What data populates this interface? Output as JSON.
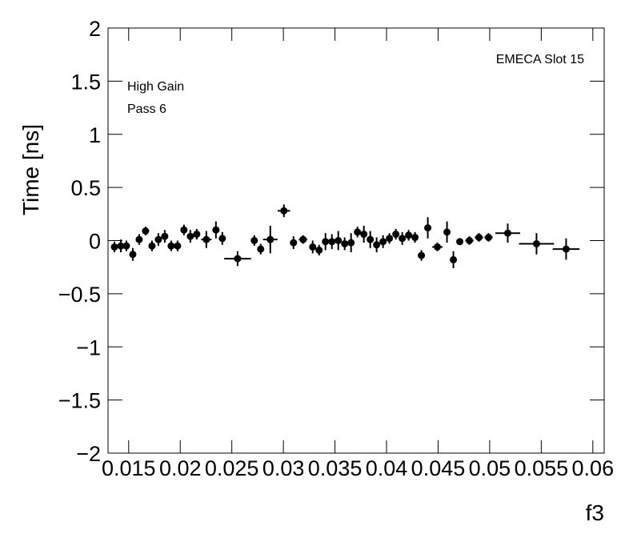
{
  "chart_data": {
    "type": "errorbar",
    "annotations": [
      "EMECA Slot 15",
      "High Gain",
      "Pass 6"
    ],
    "xlabel": "f3",
    "ylabel": "Time [ns]",
    "color": "#000000",
    "xlim": [
      0.013,
      0.0611
    ],
    "ylim": [
      -2,
      2
    ],
    "xticks": [
      0.015,
      0.02,
      0.025,
      0.03,
      0.035,
      0.04,
      0.045,
      0.05,
      0.055,
      0.06
    ],
    "yticks": [
      {
        "value": -2,
        "label": "−2"
      },
      {
        "value": -1.5,
        "label": "−1.5"
      },
      {
        "value": -1,
        "label": "−1"
      },
      {
        "value": -0.5,
        "label": "−0.5"
      },
      0,
      0.5,
      1,
      1.5,
      2
    ],
    "x": [
      0.01362,
      0.01424,
      0.01478,
      0.0154,
      0.01602,
      0.01664,
      0.01726,
      0.01788,
      0.0185,
      0.01912,
      0.01974,
      0.02036,
      0.02098,
      0.0216,
      0.02253,
      0.02346,
      0.02408,
      0.02556,
      0.02718,
      0.0278,
      0.02873,
      0.03005,
      0.03098,
      0.03191,
      0.03284,
      0.03346,
      0.03408,
      0.0347,
      0.03532,
      0.03594,
      0.03656,
      0.03718,
      0.0378,
      0.03842,
      0.03904,
      0.03966,
      0.04028,
      0.0409,
      0.04152,
      0.04214,
      0.04276,
      0.04338,
      0.044,
      0.04493,
      0.04586,
      0.04648,
      0.0471,
      0.04803,
      0.04896,
      0.04989,
      0.05175,
      0.05454,
      0.05741
    ],
    "xerr": [
      0.0003,
      0.0003,
      0.0003,
      0.0003,
      0.0003,
      0.0003,
      0.0003,
      0.0003,
      0.0003,
      0.0003,
      0.0003,
      0.0003,
      0.0003,
      0.0003,
      0.0005,
      0.0003,
      0.0003,
      0.0013,
      0.0003,
      0.0003,
      0.0007,
      0.0006,
      0.0003,
      0.0004,
      0.0003,
      0.0003,
      0.0003,
      0.0003,
      0.0003,
      0.0003,
      0.0003,
      0.0003,
      0.0003,
      0.0003,
      0.0003,
      0.0003,
      0.0003,
      0.0003,
      0.0003,
      0.0003,
      0.0003,
      0.0003,
      0.0003,
      0.0005,
      0.0003,
      0.0003,
      0.0003,
      0.0004,
      0.0004,
      0.0004,
      0.0012,
      0.0017,
      0.0013
    ],
    "values": [
      -0.06,
      -0.05,
      -0.05,
      -0.13,
      0.01,
      0.09,
      -0.05,
      0.01,
      0.04,
      -0.05,
      -0.05,
      0.1,
      0.04,
      0.06,
      0.01,
      0.1,
      0.02,
      -0.17,
      0.0,
      -0.08,
      0.01,
      0.28,
      -0.02,
      0.01,
      -0.06,
      -0.09,
      -0.01,
      -0.01,
      0.0,
      -0.03,
      -0.02,
      0.08,
      0.06,
      0.01,
      -0.04,
      -0.01,
      0.02,
      0.06,
      0.02,
      0.05,
      0.03,
      -0.14,
      0.12,
      -0.06,
      0.08,
      -0.18,
      -0.01,
      0.0,
      0.03,
      0.03,
      0.07,
      -0.03,
      -0.08
    ],
    "yerr": [
      0.05,
      0.06,
      0.05,
      0.06,
      0.05,
      0.04,
      0.05,
      0.06,
      0.06,
      0.05,
      0.05,
      0.05,
      0.06,
      0.05,
      0.08,
      0.08,
      0.06,
      0.07,
      0.05,
      0.05,
      0.13,
      0.06,
      0.06,
      0.04,
      0.06,
      0.05,
      0.08,
      0.07,
      0.09,
      0.06,
      0.09,
      0.05,
      0.08,
      0.08,
      0.07,
      0.06,
      0.05,
      0.05,
      0.06,
      0.05,
      0.05,
      0.05,
      0.1,
      0.04,
      0.1,
      0.08,
      0.03,
      0.04,
      0.04,
      0.04,
      0.09,
      0.1,
      0.1
    ]
  }
}
